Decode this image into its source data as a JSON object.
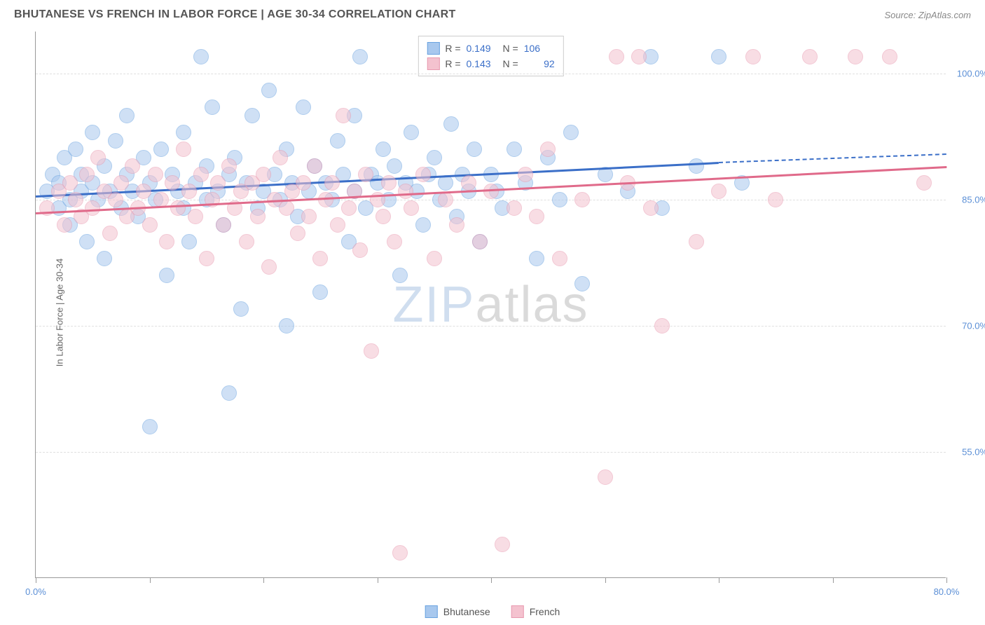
{
  "title": "BHUTANESE VS FRENCH IN LABOR FORCE | AGE 30-34 CORRELATION CHART",
  "source": "Source: ZipAtlas.com",
  "y_axis_label": "In Labor Force | Age 30-34",
  "watermark": {
    "part1": "ZIP",
    "part2": "atlas"
  },
  "chart": {
    "type": "scatter",
    "background_color": "#ffffff",
    "grid_color": "#e0e0e0",
    "axis_color": "#999999",
    "tick_label_color": "#5b8fd6",
    "xlim": [
      0,
      80
    ],
    "ylim": [
      40,
      105
    ],
    "y_ticks": [
      {
        "value": 100,
        "label": "100.0%"
      },
      {
        "value": 85,
        "label": "85.0%"
      },
      {
        "value": 70,
        "label": "70.0%"
      },
      {
        "value": 55,
        "label": "55.0%"
      }
    ],
    "x_ticks": [
      0,
      10,
      20,
      30,
      40,
      50,
      60,
      70,
      80
    ],
    "x_labels": [
      {
        "value": 0,
        "label": "0.0%"
      },
      {
        "value": 80,
        "label": "80.0%"
      }
    ],
    "marker_radius": 11,
    "marker_opacity": 0.55,
    "series": [
      {
        "name": "Bhutanese",
        "fill_color": "#a8c8ee",
        "stroke_color": "#6ba3e0",
        "trend": {
          "x1": 0,
          "y1": 85.5,
          "x2": 60,
          "y2": 89.5,
          "x2_dash": 80,
          "y2_dash": 90.5,
          "color": "#3b6fc8"
        },
        "stats": {
          "R": "0.149",
          "N": "106"
        },
        "points": [
          [
            1,
            86
          ],
          [
            1.5,
            88
          ],
          [
            2,
            84
          ],
          [
            2,
            87
          ],
          [
            2.5,
            90
          ],
          [
            3,
            85
          ],
          [
            3,
            82
          ],
          [
            3.5,
            91
          ],
          [
            4,
            86
          ],
          [
            4,
            88
          ],
          [
            4.5,
            80
          ],
          [
            5,
            87
          ],
          [
            5,
            93
          ],
          [
            5.5,
            85
          ],
          [
            6,
            89
          ],
          [
            6,
            78
          ],
          [
            6.5,
            86
          ],
          [
            7,
            92
          ],
          [
            7.5,
            84
          ],
          [
            8,
            88
          ],
          [
            8,
            95
          ],
          [
            8.5,
            86
          ],
          [
            9,
            83
          ],
          [
            9.5,
            90
          ],
          [
            10,
            87
          ],
          [
            10,
            58
          ],
          [
            10.5,
            85
          ],
          [
            11,
            91
          ],
          [
            11.5,
            76
          ],
          [
            12,
            88
          ],
          [
            12.5,
            86
          ],
          [
            13,
            84
          ],
          [
            13,
            93
          ],
          [
            13.5,
            80
          ],
          [
            14,
            87
          ],
          [
            14.5,
            102
          ],
          [
            15,
            85
          ],
          [
            15,
            89
          ],
          [
            15.5,
            96
          ],
          [
            16,
            86
          ],
          [
            16.5,
            82
          ],
          [
            17,
            88
          ],
          [
            17,
            62
          ],
          [
            17.5,
            90
          ],
          [
            18,
            72
          ],
          [
            18.5,
            87
          ],
          [
            19,
            95
          ],
          [
            19.5,
            84
          ],
          [
            20,
            86
          ],
          [
            20.5,
            98
          ],
          [
            21,
            88
          ],
          [
            21.5,
            85
          ],
          [
            22,
            91
          ],
          [
            22,
            70
          ],
          [
            22.5,
            87
          ],
          [
            23,
            83
          ],
          [
            23.5,
            96
          ],
          [
            24,
            86
          ],
          [
            24.5,
            89
          ],
          [
            25,
            74
          ],
          [
            25.5,
            87
          ],
          [
            26,
            85
          ],
          [
            26.5,
            92
          ],
          [
            27,
            88
          ],
          [
            27.5,
            80
          ],
          [
            28,
            86
          ],
          [
            28,
            95
          ],
          [
            28.5,
            102
          ],
          [
            29,
            84
          ],
          [
            29.5,
            88
          ],
          [
            30,
            87
          ],
          [
            30.5,
            91
          ],
          [
            31,
            85
          ],
          [
            31.5,
            89
          ],
          [
            32,
            76
          ],
          [
            32.5,
            87
          ],
          [
            33,
            93
          ],
          [
            33.5,
            86
          ],
          [
            34,
            82
          ],
          [
            34.5,
            88
          ],
          [
            35,
            90
          ],
          [
            35.5,
            85
          ],
          [
            36,
            87
          ],
          [
            36.5,
            94
          ],
          [
            37,
            83
          ],
          [
            37.5,
            88
          ],
          [
            38,
            86
          ],
          [
            38.5,
            91
          ],
          [
            39,
            80
          ],
          [
            40,
            88
          ],
          [
            40.5,
            86
          ],
          [
            41,
            84
          ],
          [
            42,
            91
          ],
          [
            43,
            87
          ],
          [
            44,
            78
          ],
          [
            45,
            90
          ],
          [
            46,
            85
          ],
          [
            47,
            93
          ],
          [
            48,
            75
          ],
          [
            50,
            88
          ],
          [
            52,
            86
          ],
          [
            54,
            102
          ],
          [
            55,
            84
          ],
          [
            58,
            89
          ],
          [
            60,
            102
          ],
          [
            62,
            87
          ]
        ]
      },
      {
        "name": "French",
        "fill_color": "#f4c2cf",
        "stroke_color": "#e89ab0",
        "trend": {
          "x1": 0,
          "y1": 83.5,
          "x2": 80,
          "y2": 89.0,
          "color": "#e06a8a"
        },
        "stats": {
          "R": "0.143",
          "N": "92"
        },
        "points": [
          [
            1,
            84
          ],
          [
            2,
            86
          ],
          [
            2.5,
            82
          ],
          [
            3,
            87
          ],
          [
            3.5,
            85
          ],
          [
            4,
            83
          ],
          [
            4.5,
            88
          ],
          [
            5,
            84
          ],
          [
            5.5,
            90
          ],
          [
            6,
            86
          ],
          [
            6.5,
            81
          ],
          [
            7,
            85
          ],
          [
            7.5,
            87
          ],
          [
            8,
            83
          ],
          [
            8.5,
            89
          ],
          [
            9,
            84
          ],
          [
            9.5,
            86
          ],
          [
            10,
            82
          ],
          [
            10.5,
            88
          ],
          [
            11,
            85
          ],
          [
            11.5,
            80
          ],
          [
            12,
            87
          ],
          [
            12.5,
            84
          ],
          [
            13,
            91
          ],
          [
            13.5,
            86
          ],
          [
            14,
            83
          ],
          [
            14.5,
            88
          ],
          [
            15,
            78
          ],
          [
            15.5,
            85
          ],
          [
            16,
            87
          ],
          [
            16.5,
            82
          ],
          [
            17,
            89
          ],
          [
            17.5,
            84
          ],
          [
            18,
            86
          ],
          [
            18.5,
            80
          ],
          [
            19,
            87
          ],
          [
            19.5,
            83
          ],
          [
            20,
            88
          ],
          [
            20.5,
            77
          ],
          [
            21,
            85
          ],
          [
            21.5,
            90
          ],
          [
            22,
            84
          ],
          [
            22.5,
            86
          ],
          [
            23,
            81
          ],
          [
            23.5,
            87
          ],
          [
            24,
            83
          ],
          [
            24.5,
            89
          ],
          [
            25,
            78
          ],
          [
            25.5,
            85
          ],
          [
            26,
            87
          ],
          [
            26.5,
            82
          ],
          [
            27,
            95
          ],
          [
            27.5,
            84
          ],
          [
            28,
            86
          ],
          [
            28.5,
            79
          ],
          [
            29,
            88
          ],
          [
            29.5,
            67
          ],
          [
            30,
            85
          ],
          [
            30.5,
            83
          ],
          [
            31,
            87
          ],
          [
            31.5,
            80
          ],
          [
            32,
            43
          ],
          [
            32.5,
            86
          ],
          [
            33,
            84
          ],
          [
            34,
            88
          ],
          [
            35,
            78
          ],
          [
            36,
            85
          ],
          [
            37,
            82
          ],
          [
            38,
            87
          ],
          [
            39,
            80
          ],
          [
            40,
            86
          ],
          [
            41,
            44
          ],
          [
            42,
            84
          ],
          [
            43,
            88
          ],
          [
            44,
            83
          ],
          [
            45,
            91
          ],
          [
            46,
            78
          ],
          [
            48,
            85
          ],
          [
            50,
            52
          ],
          [
            52,
            87
          ],
          [
            51,
            102
          ],
          [
            53,
            102
          ],
          [
            54,
            84
          ],
          [
            55,
            70
          ],
          [
            58,
            80
          ],
          [
            60,
            86
          ],
          [
            63,
            102
          ],
          [
            65,
            85
          ],
          [
            68,
            102
          ],
          [
            72,
            102
          ],
          [
            75,
            102
          ],
          [
            78,
            87
          ]
        ]
      }
    ]
  },
  "legend": {
    "items": [
      {
        "label": "Bhutanese"
      },
      {
        "label": "French"
      }
    ]
  }
}
